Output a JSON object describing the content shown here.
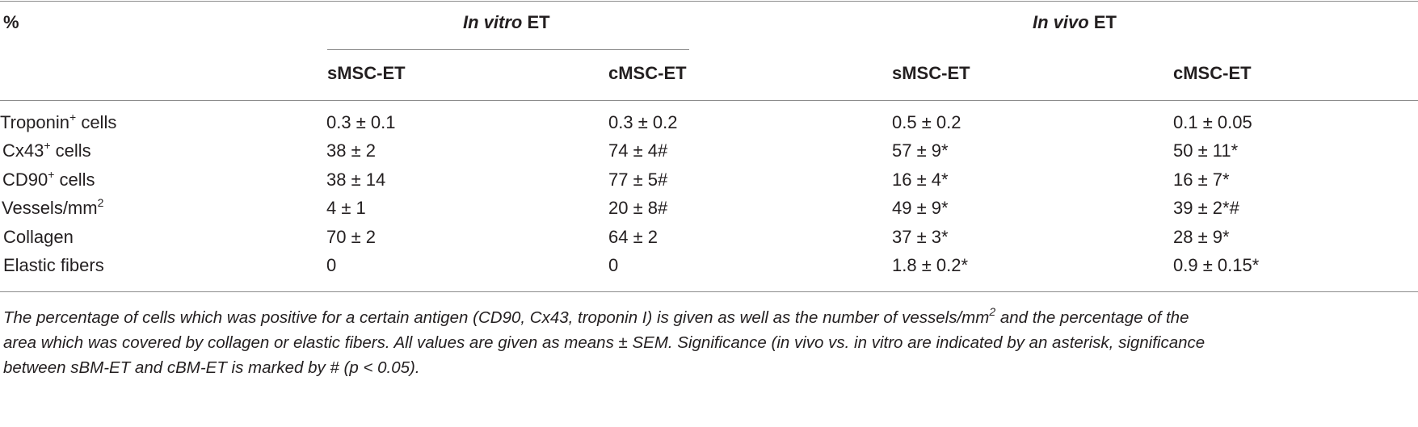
{
  "table": {
    "corner_label": "%",
    "groups": [
      {
        "italic": "In vitro",
        "rest": " ET"
      },
      {
        "italic": "In vivo",
        "rest": " ET"
      }
    ],
    "columns": [
      "sMSC-ET",
      "cMSC-ET",
      "sMSC-ET",
      "cMSC-ET"
    ],
    "rows": [
      {
        "label": "Troponin",
        "sup": "+",
        "suffix": " cells",
        "values": [
          "0.3 ± 0.1",
          "0.3 ± 0.2",
          "0.5 ± 0.2",
          "0.1 ± 0.05"
        ]
      },
      {
        "label": "Cx43",
        "sup": "+",
        "suffix": " cells",
        "values": [
          "38 ± 2",
          "74 ± 4#",
          "57 ± 9*",
          "50 ± 11*"
        ]
      },
      {
        "label": "CD90",
        "sup": "+",
        "suffix": " cells",
        "values": [
          "38 ± 14",
          "77 ± 5#",
          "16 ± 4*",
          "16 ± 7*"
        ]
      },
      {
        "label": "Vessels/mm",
        "sup": "2",
        "suffix": "",
        "values": [
          "4 ± 1",
          "20 ± 8#",
          "49 ± 9*",
          "39 ± 2*#"
        ]
      },
      {
        "label": "Collagen",
        "sup": "",
        "suffix": "",
        "values": [
          "70 ± 2",
          "64 ± 2",
          "37 ± 3*",
          "28 ± 9*"
        ]
      },
      {
        "label": "Elastic fibers",
        "sup": "",
        "suffix": "",
        "values": [
          "0",
          "0",
          "1.8 ± 0.2*",
          "0.9 ± 0.15*"
        ]
      }
    ]
  },
  "footnote": {
    "line1_a": "The percentage of cells which was positive for a certain antigen (CD90, Cx43, troponin I) is given as well as the number of vessels/mm",
    "line1_sup": "2",
    "line1_b": " and the percentage of the",
    "line2": "area which was covered by collagen or elastic fibers. All values are given as means ± SEM. Significance (in vivo vs. in vitro are indicated by an asterisk, significance",
    "line3": "between sBM-ET and cBM-ET is marked by # (p < 0.05)."
  }
}
